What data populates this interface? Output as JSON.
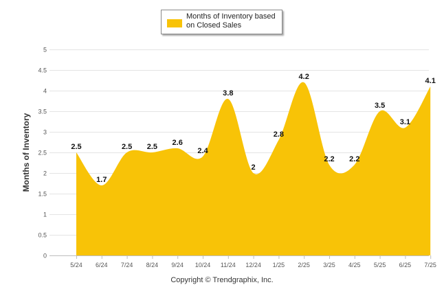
{
  "chart_data": {
    "type": "area",
    "categories": [
      "5/24",
      "6/24",
      "7/24",
      "8/24",
      "9/24",
      "10/24",
      "11/24",
      "12/24",
      "1/25",
      "2/25",
      "3/25",
      "4/25",
      "5/25",
      "6/25",
      "7/25"
    ],
    "series": [
      {
        "name": "Months of Inventory based on Closed Sales",
        "values": [
          2.5,
          1.7,
          2.5,
          2.5,
          2.6,
          2.4,
          3.8,
          2,
          2.8,
          4.2,
          2.2,
          2.2,
          3.5,
          3.1,
          4.1
        ]
      }
    ],
    "data_labels": [
      "2.5",
      "1.7",
      "2.5",
      "2.5",
      "2.6",
      "2.4",
      "3.8",
      "2",
      "2.8",
      "4.2",
      "2.2",
      "2.2",
      "3.5",
      "3.1",
      "4.1"
    ],
    "ylabel": "Months of Inventory",
    "xlabel": "",
    "ylim": [
      0,
      5
    ],
    "yticks": [
      "0",
      "0.5",
      "1",
      "1.5",
      "2",
      "2.5",
      "3",
      "3.5",
      "4",
      "4.5",
      "5"
    ],
    "grid": true,
    "legend_position": "top-center",
    "fill_color": "#f8c307"
  },
  "footer": {
    "copyright": "Copyright © Trendgraphix, Inc."
  }
}
